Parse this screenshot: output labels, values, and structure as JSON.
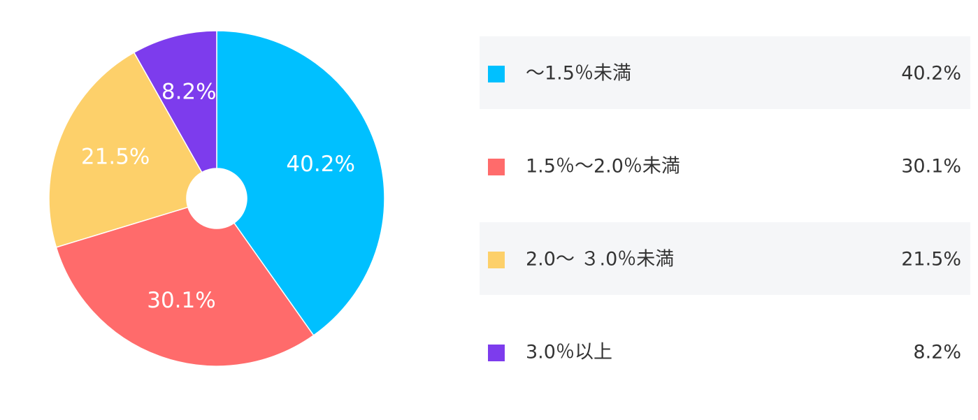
{
  "chart_data": {
    "type": "pie",
    "categories": [
      "～1.5％未満",
      "1.5％～2.0％未満",
      "2.0～ ３.0％未満",
      "3.0％以上"
    ],
    "values": [
      40.2,
      30.1,
      21.5,
      8.2
    ],
    "value_labels": [
      "40.2%",
      "30.1%",
      "21.5%",
      "8.2%"
    ],
    "colors": [
      "#00c0ff",
      "#ff6b6b",
      "#fdd06a",
      "#7d3ced"
    ]
  }
}
